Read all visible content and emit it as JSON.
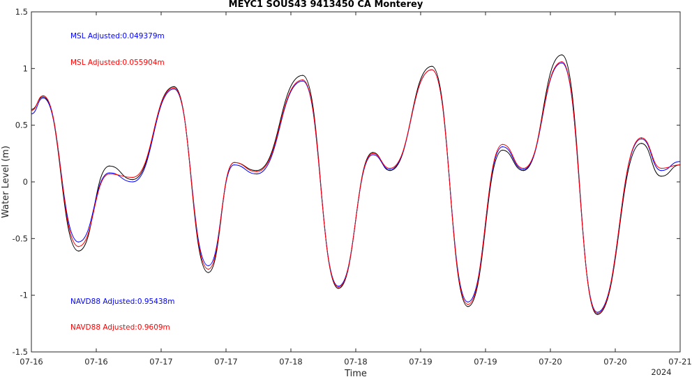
{
  "chart_data": {
    "type": "line",
    "title": "MEYC1 SOUS43 9413450 CA Monterey",
    "xlabel": "Time",
    "ylabel": "Water Level (m)",
    "year_label": "2024",
    "ylim": [
      -1.5,
      1.5
    ],
    "yticks": [
      {
        "value": -1.5,
        "label": "-1.5"
      },
      {
        "value": -1,
        "label": "-1"
      },
      {
        "value": -0.5,
        "label": "-0.5"
      },
      {
        "value": 0,
        "label": "0"
      },
      {
        "value": 0.5,
        "label": "0.5"
      },
      {
        "value": 1,
        "label": "1"
      },
      {
        "value": 1.5,
        "label": "1.5"
      }
    ],
    "xlim": [
      "2024-07-16 00:00",
      "2024-07-21 00:00"
    ],
    "xticks": [
      {
        "value": "2024-07-16 00:00",
        "label": "07-16"
      },
      {
        "value": "2024-07-16 12:00",
        "label": "07-16"
      },
      {
        "value": "2024-07-17 00:00",
        "label": "07-17"
      },
      {
        "value": "2024-07-17 12:00",
        "label": "07-17"
      },
      {
        "value": "2024-07-18 00:00",
        "label": "07-18"
      },
      {
        "value": "2024-07-18 12:00",
        "label": "07-18"
      },
      {
        "value": "2024-07-19 00:00",
        "label": "07-19"
      },
      {
        "value": "2024-07-19 12:00",
        "label": "07-19"
      },
      {
        "value": "2024-07-20 00:00",
        "label": "07-20"
      },
      {
        "value": "2024-07-20 12:00",
        "label": "07-20"
      },
      {
        "value": "2024-07-21 00:00",
        "label": "07-21"
      }
    ],
    "grid": false,
    "annotations": [
      {
        "text": "MSL Adjusted:0.049379m",
        "color": "#0000ff"
      },
      {
        "text": "MSL Adjusted:0.055904m",
        "color": "#ff0000"
      },
      {
        "text": "NAVD88 Adjusted:0.95438m",
        "color": "#0000ff"
      },
      {
        "text": "NAVD88 Adjusted:0.9609m",
        "color": "#ff0000"
      }
    ],
    "series": [
      {
        "color": "#000000",
        "x": [
          "2024-07-16 00:00",
          "2024-07-16 02:11",
          "2024-07-16 08:43",
          "2024-07-16 14:26",
          "2024-07-16 18:44",
          "2024-07-17 02:23",
          "2024-07-17 08:43",
          "2024-07-17 13:29",
          "2024-07-17 17:41",
          "2024-07-18 02:11",
          "2024-07-18 08:47",
          "2024-07-18 15:10",
          "2024-07-18 18:20",
          "2024-07-19 02:05",
          "2024-07-19 08:45",
          "2024-07-19 15:10",
          "2024-07-19 19:00",
          "2024-07-20 02:07",
          "2024-07-20 08:40",
          "2024-07-20 16:50",
          "2024-07-20 20:30",
          "2024-07-21 00:00"
        ],
        "y": [
          0.64,
          0.75,
          -0.61,
          0.14,
          0.02,
          0.84,
          -0.8,
          0.17,
          0.1,
          0.94,
          -0.94,
          0.26,
          0.1,
          1.02,
          -1.1,
          0.28,
          0.1,
          1.12,
          -1.17,
          0.34,
          0.05,
          0.15
        ]
      },
      {
        "color": "#0000ff",
        "x": [
          "2024-07-16 00:00",
          "2024-07-16 02:11",
          "2024-07-16 08:43",
          "2024-07-16 14:26",
          "2024-07-16 18:44",
          "2024-07-17 02:23",
          "2024-07-17 08:43",
          "2024-07-17 13:29",
          "2024-07-17 17:41",
          "2024-07-18 02:11",
          "2024-07-18 08:47",
          "2024-07-18 15:10",
          "2024-07-18 18:20",
          "2024-07-19 02:05",
          "2024-07-19 08:45",
          "2024-07-19 15:10",
          "2024-07-19 19:00",
          "2024-07-20 02:07",
          "2024-07-20 08:40",
          "2024-07-20 16:50",
          "2024-07-20 20:30",
          "2024-07-21 00:00"
        ],
        "y": [
          0.6,
          0.74,
          -0.53,
          0.08,
          0.0,
          0.82,
          -0.74,
          0.15,
          0.07,
          0.89,
          -0.92,
          0.24,
          0.11,
          0.99,
          -1.06,
          0.31,
          0.11,
          1.05,
          -1.15,
          0.38,
          0.1,
          0.18
        ]
      },
      {
        "color": "#ff0000",
        "x": [
          "2024-07-16 00:00",
          "2024-07-16 02:11",
          "2024-07-16 08:43",
          "2024-07-16 14:26",
          "2024-07-16 18:44",
          "2024-07-17 02:23",
          "2024-07-17 08:43",
          "2024-07-17 13:29",
          "2024-07-17 17:41",
          "2024-07-18 02:11",
          "2024-07-18 08:47",
          "2024-07-18 15:10",
          "2024-07-18 18:20",
          "2024-07-19 02:05",
          "2024-07-19 08:45",
          "2024-07-19 15:10",
          "2024-07-19 19:00",
          "2024-07-20 02:07",
          "2024-07-20 08:40",
          "2024-07-20 16:50",
          "2024-07-20 20:30",
          "2024-07-21 00:00"
        ],
        "y": [
          0.63,
          0.76,
          -0.57,
          0.07,
          0.04,
          0.83,
          -0.77,
          0.17,
          0.09,
          0.9,
          -0.93,
          0.25,
          0.12,
          0.99,
          -1.08,
          0.33,
          0.12,
          1.06,
          -1.16,
          0.39,
          0.12,
          0.15
        ]
      }
    ]
  }
}
